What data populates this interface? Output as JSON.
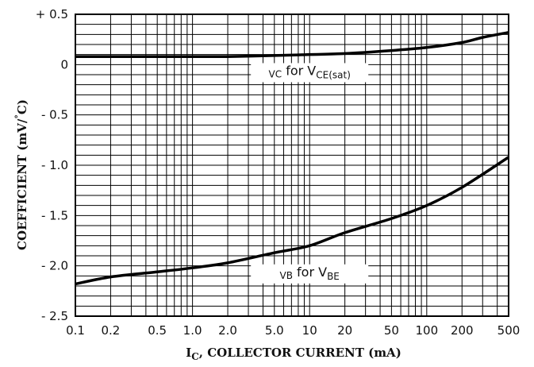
{
  "chart_data": {
    "type": "line",
    "xscale": "log",
    "xlim": [
      0.1,
      500
    ],
    "ylim": [
      -2.5,
      0.5
    ],
    "grid": true,
    "xlabel": {
      "main": "I",
      "sub": "C",
      "rest": ", COLLECTOR CURRENT (mA)"
    },
    "ylabel": {
      "main": "COEFFICIENT (mV/",
      "deg": "°",
      "rest": "C)"
    },
    "x_ticks": [
      {
        "value": 0.1,
        "label": "0.1"
      },
      {
        "value": 0.2,
        "label": "0.2"
      },
      {
        "value": 0.5,
        "label": "0.5"
      },
      {
        "value": 1.0,
        "label": "1.0"
      },
      {
        "value": 2.0,
        "label": "2.0"
      },
      {
        "value": 5.0,
        "label": "5.0"
      },
      {
        "value": 10,
        "label": "10"
      },
      {
        "value": 20,
        "label": "20"
      },
      {
        "value": 50,
        "label": "50"
      },
      {
        "value": 100,
        "label": "100"
      },
      {
        "value": 200,
        "label": "200"
      },
      {
        "value": 500,
        "label": "500"
      }
    ],
    "y_ticks": [
      {
        "value": 0.5,
        "label": "+ 0.5"
      },
      {
        "value": 0,
        "label": "0"
      },
      {
        "value": -0.5,
        "label": "- 0.5"
      },
      {
        "value": -1.0,
        "label": "- 1.0"
      },
      {
        "value": -1.5,
        "label": "- 1.5"
      },
      {
        "value": -2.0,
        "label": "- 2.0"
      },
      {
        "value": -2.5,
        "label": "- 2.5"
      }
    ],
    "series": [
      {
        "label_parts": {
          "a": "VC",
          "b": " for V",
          "c": "CE(sat)"
        },
        "label_at": {
          "x": 10,
          "y": -0.08
        },
        "points": [
          {
            "x": 0.1,
            "y": 0.08
          },
          {
            "x": 0.2,
            "y": 0.08
          },
          {
            "x": 0.5,
            "y": 0.08
          },
          {
            "x": 1.0,
            "y": 0.08
          },
          {
            "x": 2.0,
            "y": 0.08
          },
          {
            "x": 5.0,
            "y": 0.09
          },
          {
            "x": 10,
            "y": 0.1
          },
          {
            "x": 20,
            "y": 0.11
          },
          {
            "x": 50,
            "y": 0.14
          },
          {
            "x": 100,
            "y": 0.17
          },
          {
            "x": 200,
            "y": 0.22
          },
          {
            "x": 300,
            "y": 0.27
          },
          {
            "x": 500,
            "y": 0.32
          }
        ]
      },
      {
        "label_parts": {
          "a": "VB",
          "b": " for V",
          "c": "BE"
        },
        "label_at": {
          "x": 10,
          "y": -2.08
        },
        "points": [
          {
            "x": 0.1,
            "y": -2.18
          },
          {
            "x": 0.2,
            "y": -2.11
          },
          {
            "x": 0.5,
            "y": -2.06
          },
          {
            "x": 1.0,
            "y": -2.02
          },
          {
            "x": 2.0,
            "y": -1.97
          },
          {
            "x": 5.0,
            "y": -1.87
          },
          {
            "x": 10,
            "y": -1.8
          },
          {
            "x": 20,
            "y": -1.67
          },
          {
            "x": 50,
            "y": -1.53
          },
          {
            "x": 100,
            "y": -1.4
          },
          {
            "x": 200,
            "y": -1.22
          },
          {
            "x": 500,
            "y": -0.92
          }
        ]
      }
    ]
  }
}
